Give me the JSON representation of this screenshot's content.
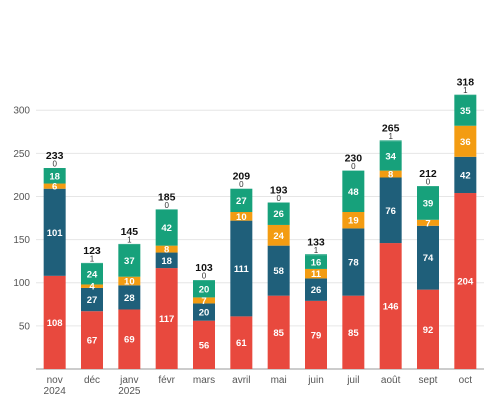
{
  "chart_data": {
    "type": "bar",
    "stacked": true,
    "categories": [
      [
        "nov",
        "2024"
      ],
      [
        "déc"
      ],
      [
        "janv",
        "2025"
      ],
      [
        "févr"
      ],
      [
        "mars"
      ],
      [
        "avril"
      ],
      [
        "mai"
      ],
      [
        "juin"
      ],
      [
        "juil"
      ],
      [
        "août"
      ],
      [
        "sept"
      ],
      [
        "oct"
      ]
    ],
    "series": [
      {
        "color": "#e8493e",
        "values": [
          108,
          67,
          69,
          117,
          56,
          61,
          85,
          79,
          85,
          146,
          92,
          204
        ]
      },
      {
        "color": "#1f5f7a",
        "values": [
          101,
          27,
          28,
          18,
          20,
          111,
          58,
          26,
          78,
          76,
          74,
          42
        ]
      },
      {
        "color": "#f39c12",
        "values": [
          6,
          4,
          10,
          8,
          7,
          10,
          24,
          11,
          19,
          8,
          7,
          36
        ]
      },
      {
        "color": "#17a17b",
        "values": [
          18,
          24,
          37,
          42,
          20,
          27,
          26,
          16,
          48,
          34,
          39,
          35
        ]
      },
      {
        "color": "#17a17b",
        "values": [
          0,
          1,
          1,
          0,
          0,
          0,
          0,
          1,
          0,
          1,
          0,
          1
        ]
      }
    ],
    "totals": [
      233,
      123,
      145,
      185,
      103,
      209,
      193,
      133,
      230,
      265,
      212,
      318
    ],
    "yticks": [
      50,
      100,
      150,
      200,
      250,
      300
    ],
    "ylim": [
      0,
      320
    ],
    "grid": true,
    "legend": "none",
    "title": "",
    "xlabel": "",
    "ylabel": ""
  }
}
